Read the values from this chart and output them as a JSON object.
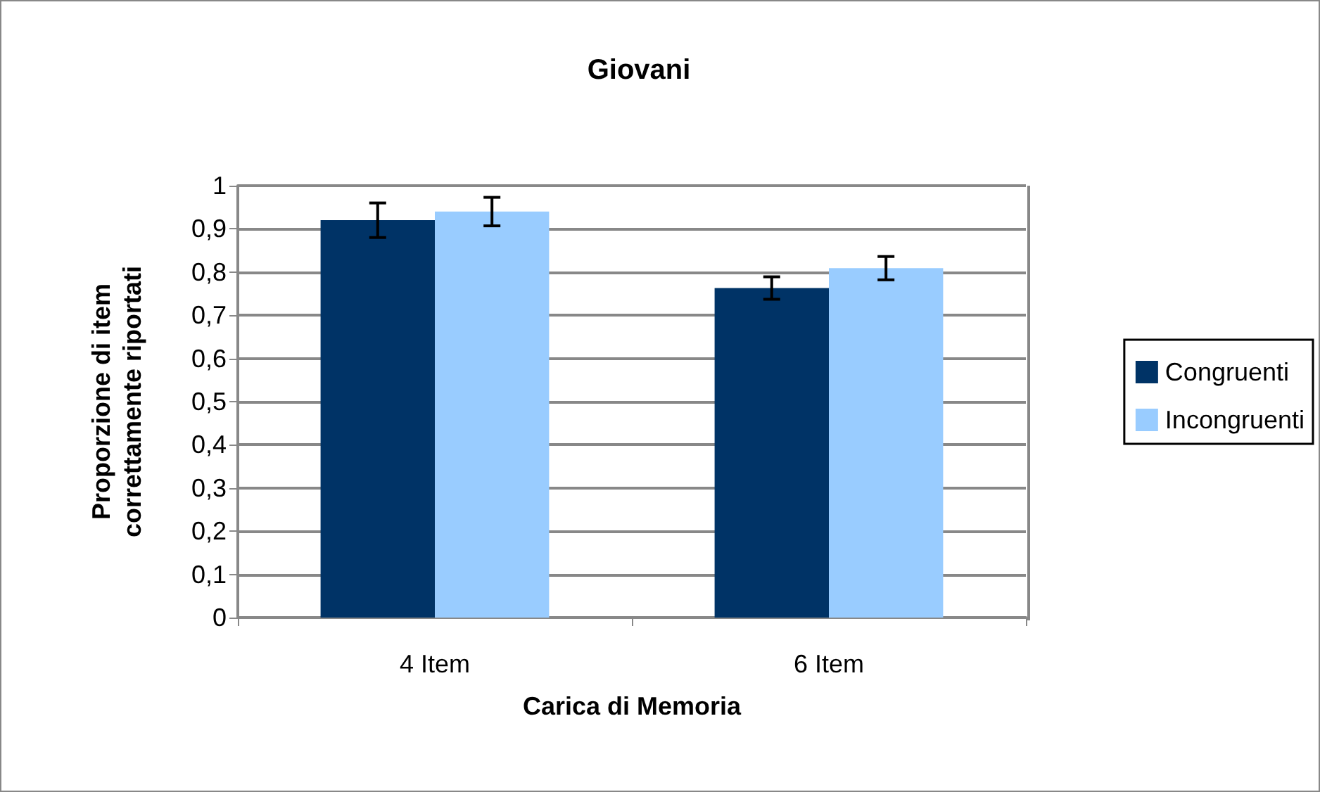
{
  "chart_data": {
    "type": "bar",
    "title": "Giovani",
    "xlabel": "Carica di Memoria",
    "ylabel": "Proporzione di item\ncorrettamente riportati",
    "categories": [
      "4 Item",
      "6 Item"
    ],
    "series": [
      {
        "name": "Congruenti",
        "color": "#003366",
        "values": [
          0.92,
          0.763
        ],
        "errors": [
          0.04,
          0.026
        ]
      },
      {
        "name": "Incongruenti",
        "color": "#99ccff",
        "values": [
          0.94,
          0.809
        ],
        "errors": [
          0.033,
          0.027
        ]
      }
    ],
    "ylim": [
      0,
      1
    ],
    "yticks": [
      0,
      {
        "value": 0.1,
        "label": "0,1"
      },
      {
        "value": 0.2,
        "label": "0,2"
      },
      {
        "value": 0.3,
        "label": "0,3"
      },
      {
        "value": 0.4,
        "label": "0,4"
      },
      {
        "value": 0.5,
        "label": "0,5"
      },
      {
        "value": 0.6,
        "label": "0,6"
      },
      {
        "value": 0.7,
        "label": "0,7"
      },
      {
        "value": 0.8,
        "label": "0,8"
      },
      {
        "value": 0.9,
        "label": "0,9"
      },
      1
    ],
    "grid": "y",
    "legend": "right"
  }
}
